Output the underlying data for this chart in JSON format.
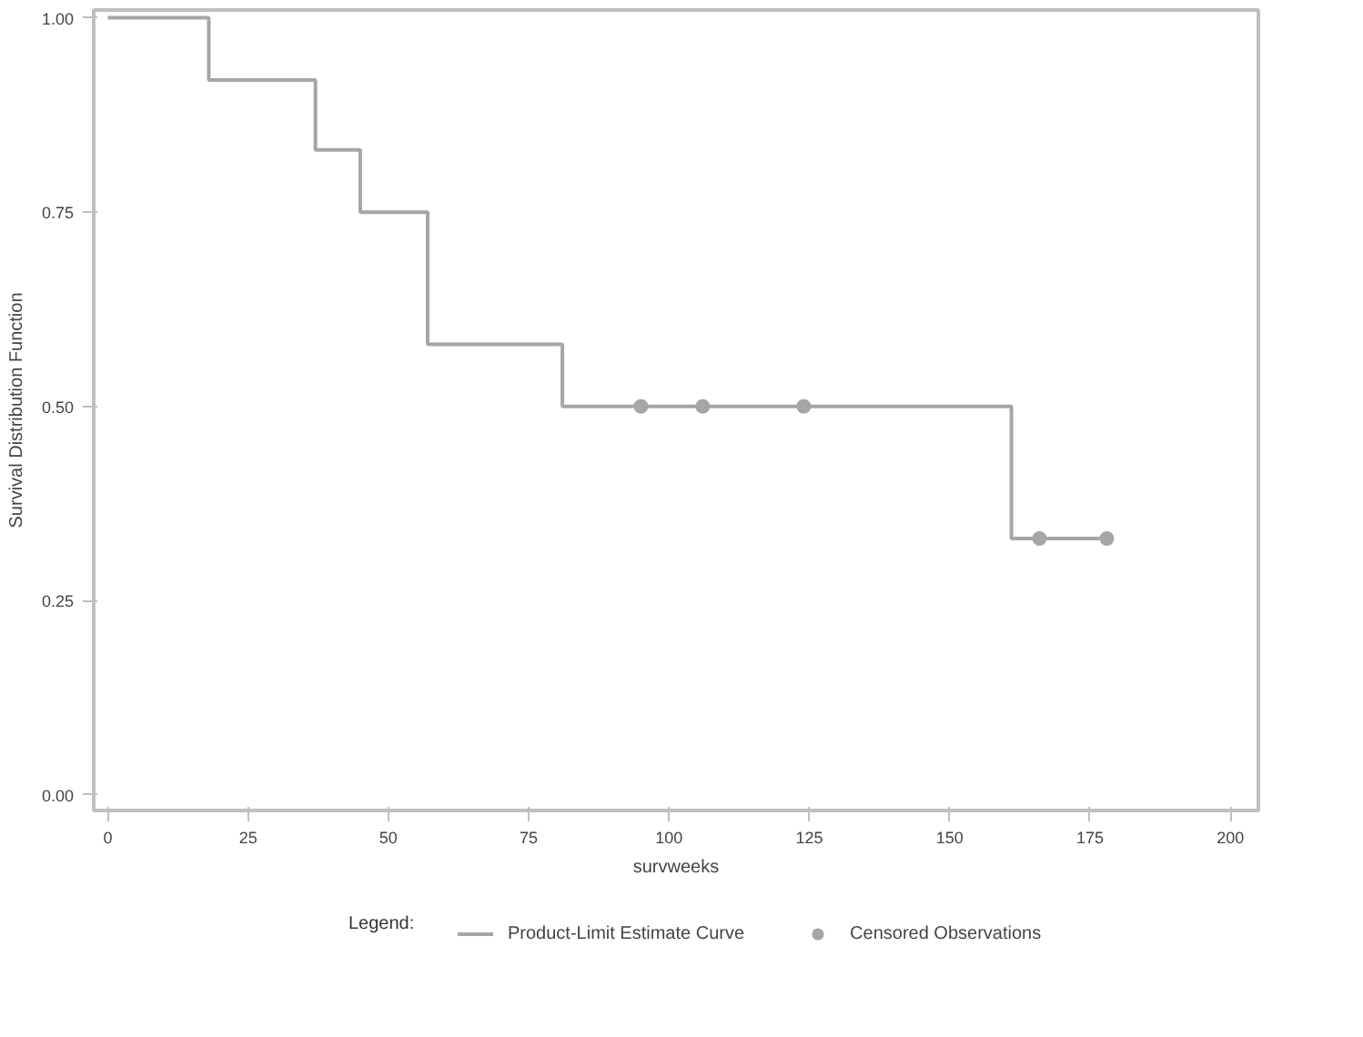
{
  "chart_data": {
    "type": "step",
    "xlabel": "survweeks",
    "ylabel": "Survival Distribution Function",
    "legend_title": "Legend:",
    "xlim": [
      -2.5,
      205
    ],
    "ylim": [
      -0.02,
      1.01
    ],
    "xticks": [
      0,
      25,
      50,
      75,
      100,
      125,
      150,
      175,
      200
    ],
    "yticks": [
      {
        "value": 0,
        "label": "0.00"
      },
      {
        "value": 0.25,
        "label": "0.25"
      },
      {
        "value": 0.5,
        "label": "0.50"
      },
      {
        "value": 0.75,
        "label": "0.75"
      },
      {
        "value": 1,
        "label": "1.00"
      }
    ],
    "legend": "bottom",
    "grid": false,
    "series": [
      {
        "name": "Product-Limit Estimate Curve",
        "color": "#a6a6a6",
        "x": [
          0,
          18,
          37,
          45,
          57,
          81,
          161,
          178
        ],
        "values": [
          1,
          0.92,
          0.83,
          0.75,
          0.58,
          0.5,
          0.33,
          0.33
        ]
      },
      {
        "name": "Censored Observations",
        "type": "scatter",
        "color": "#a6a6a6",
        "marker": "circle",
        "x": [
          95,
          106,
          124,
          166,
          178
        ],
        "values": [
          0.5,
          0.5,
          0.5,
          0.33,
          0.33
        ]
      }
    ]
  }
}
